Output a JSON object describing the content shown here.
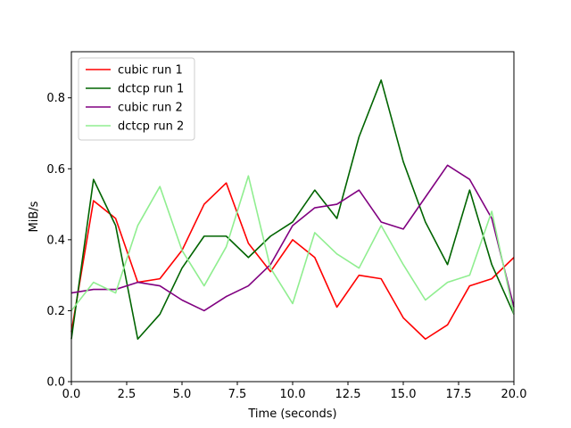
{
  "chart_data": {
    "type": "line",
    "title": "",
    "xlabel": "Time (seconds)",
    "ylabel": "MiB/s",
    "xlim": [
      0,
      20
    ],
    "ylim": [
      0,
      0.93
    ],
    "xticks": [
      0,
      2.5,
      5,
      7.5,
      10,
      12.5,
      15,
      17.5,
      20
    ],
    "xtick_labels": [
      "0.0",
      "2.5",
      "5.0",
      "7.5",
      "10.0",
      "12.5",
      "15.0",
      "17.5",
      "20.0"
    ],
    "yticks": [
      0,
      0.2,
      0.4,
      0.6,
      0.8
    ],
    "ytick_labels": [
      "0.0",
      "0.2",
      "0.4",
      "0.6",
      "0.8"
    ],
    "grid": false,
    "legend_position": "top-left",
    "x": [
      0,
      1,
      2,
      3,
      4,
      5,
      6,
      7,
      8,
      9,
      10,
      11,
      12,
      13,
      14,
      15,
      16,
      17,
      18,
      19,
      20
    ],
    "series": [
      {
        "name": "cubic run 1",
        "color": "#ff0000",
        "values": [
          0.14,
          0.51,
          0.46,
          0.28,
          0.29,
          0.37,
          0.5,
          0.56,
          0.39,
          0.31,
          0.4,
          0.35,
          0.21,
          0.3,
          0.29,
          0.18,
          0.12,
          0.16,
          0.27,
          0.29,
          0.35
        ]
      },
      {
        "name": "dctcp run 1",
        "color": "#006400",
        "values": [
          0.12,
          0.57,
          0.44,
          0.12,
          0.19,
          0.32,
          0.41,
          0.41,
          0.35,
          0.41,
          0.45,
          0.54,
          0.46,
          0.69,
          0.85,
          0.62,
          0.45,
          0.33,
          0.54,
          0.33,
          0.19
        ]
      },
      {
        "name": "cubic run 2",
        "color": "#800080",
        "values": [
          0.25,
          0.26,
          0.26,
          0.28,
          0.27,
          0.23,
          0.2,
          0.24,
          0.27,
          0.33,
          0.44,
          0.49,
          0.5,
          0.54,
          0.45,
          0.43,
          0.52,
          0.61,
          0.57,
          0.46,
          0.21
        ]
      },
      {
        "name": "dctcp run 2",
        "color": "#90ee90",
        "values": [
          0.2,
          0.28,
          0.25,
          0.44,
          0.55,
          0.37,
          0.27,
          0.38,
          0.58,
          0.32,
          0.22,
          0.42,
          0.36,
          0.32,
          0.44,
          0.33,
          0.23,
          0.28,
          0.3,
          0.48,
          0.19
        ]
      }
    ]
  }
}
